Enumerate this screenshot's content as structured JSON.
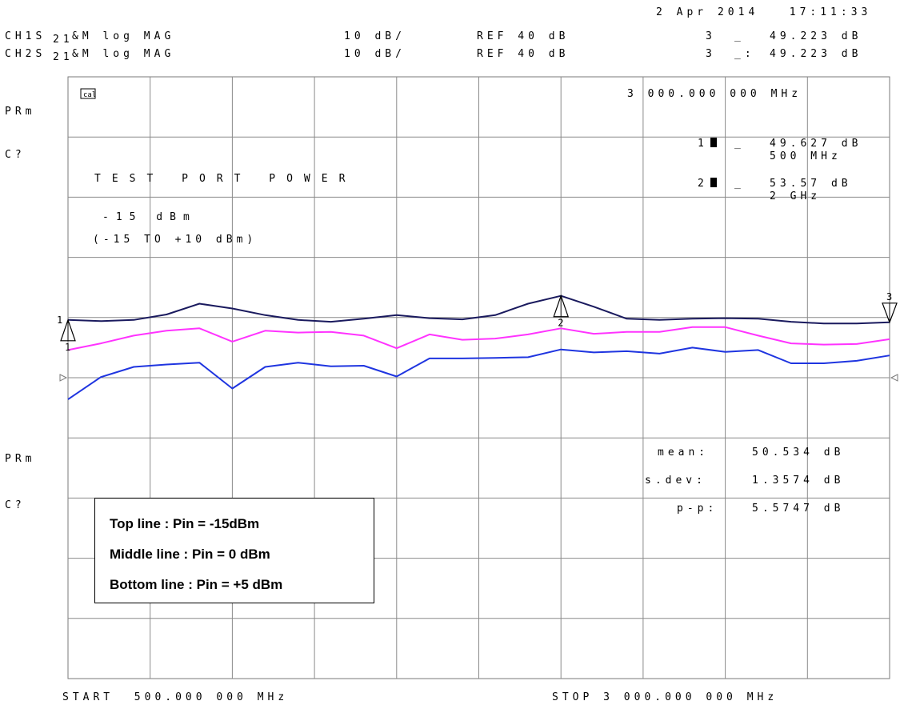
{
  "header": {
    "datetime": "2 Apr 2014   17:11:33",
    "ch1": {
      "label": "CH1S",
      "param": "21",
      "format": "&M log MAG",
      "scale": "10 dB/",
      "ref": "REF 40 dB",
      "marker": "3",
      "marker_suffix": "_",
      "value": "49.223 dB"
    },
    "ch2": {
      "label": "CH2S",
      "param": "21",
      "format": "&M log MAG",
      "scale": "10 dB/",
      "ref": "REF 40 dB",
      "marker": "3",
      "marker_suffix": "_:",
      "value": "49.223 dB"
    }
  },
  "side_labels": {
    "prm_top": "PRm",
    "c_top": "C?",
    "prm_bottom": "PRm",
    "c_bottom": "C?"
  },
  "corner_icon": "cal-icon",
  "marker_readouts": {
    "m3_freq": "3 000.000 000 MHz",
    "m1_label": "1",
    "m1_suffix": "_",
    "m1_value": "49.627 dB",
    "m1_freq": "500 MHz",
    "m2_label": "2",
    "m2_suffix": "_",
    "m2_value": "53.57 dB",
    "m2_freq": "2 GHz"
  },
  "power_info": {
    "title": "TEST PORT POWER",
    "level": "-15 dBm",
    "range": "(-15 TO +10 dBm)"
  },
  "statistics": {
    "mean_label": "mean:",
    "mean_value": "50.534 dB",
    "sdev_label": "s.dev:",
    "sdev_value": "1.3574 dB",
    "pp_label": "p-p:",
    "pp_value": "5.5747 dB"
  },
  "footer": {
    "start": "START  500.000 000 MHz",
    "stop": "STOP 3 000.000 000 MHz"
  },
  "legend": {
    "line1": "Top line : Pin = -15dBm",
    "line2": "Middle line : Pin = 0 dBm",
    "line3": "Bottom line : Pin = +5 dBm"
  },
  "chart_data": {
    "type": "line",
    "x": [
      0.5,
      0.6,
      0.7,
      0.8,
      0.9,
      1.0,
      1.1,
      1.2,
      1.3,
      1.4,
      1.5,
      1.6,
      1.7,
      1.8,
      1.9,
      2.0,
      2.1,
      2.2,
      2.3,
      2.4,
      2.5,
      2.6,
      2.7,
      2.8,
      2.9,
      3.0
    ],
    "x_unit": "GHz",
    "ylim": [
      -10,
      90
    ],
    "ref_level": 40,
    "y_per_div": 10,
    "grid": true,
    "series": [
      {
        "color": "#1a1a5e",
        "dashed_segments": true,
        "values": [
          49.6,
          49.4,
          49.6,
          50.5,
          52.3,
          51.5,
          50.4,
          49.6,
          49.3,
          49.8,
          50.4,
          49.9,
          49.7,
          50.4,
          52.3,
          53.6,
          51.8,
          49.8,
          49.6,
          49.8,
          49.9,
          49.8,
          49.3,
          49.0,
          49.0,
          49.2
        ]
      },
      {
        "color": "#ff33ff",
        "values": [
          44.6,
          45.7,
          47.0,
          47.8,
          48.2,
          46.0,
          47.8,
          47.5,
          47.6,
          47.0,
          44.9,
          47.2,
          46.3,
          46.5,
          47.2,
          48.2,
          47.3,
          47.6,
          47.6,
          48.4,
          48.4,
          47.0,
          45.7,
          45.5,
          45.6,
          46.4
        ]
      },
      {
        "color": "#1f35e0",
        "values": [
          36.4,
          40.1,
          41.8,
          42.2,
          42.5,
          38.2,
          41.8,
          42.5,
          41.9,
          42.0,
          40.2,
          43.2,
          43.2,
          43.3,
          43.4,
          44.7,
          44.2,
          44.4,
          44.0,
          45.0,
          44.3,
          44.6,
          42.4,
          42.4,
          42.8,
          43.7
        ]
      }
    ],
    "markers": [
      {
        "label": "1",
        "x": 0.5,
        "series": 0,
        "symbol": "triangle-up"
      },
      {
        "label": "2",
        "x": 2.0,
        "series": 0,
        "symbol": "triangle-up"
      },
      {
        "label": "3",
        "x": 3.0,
        "series": 0,
        "symbol": "triangle-down"
      }
    ],
    "reference_arrows": true
  }
}
